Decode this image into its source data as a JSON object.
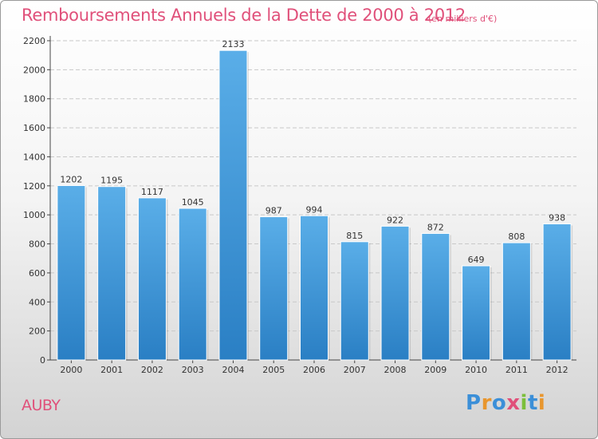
{
  "title": "Remboursements Annuels de la Dette de 2000 à 2012",
  "unit_note": "(en milliers d'€)",
  "commune": "AUBY",
  "logo": {
    "text": "Proxiti",
    "letters": [
      {
        "ch": "P",
        "color": "#3b8fd8"
      },
      {
        "ch": "r",
        "color": "#e8962e"
      },
      {
        "ch": "o",
        "color": "#3b8fd8"
      },
      {
        "ch": "x",
        "color": "#e0507a"
      },
      {
        "ch": "i",
        "color": "#7cbf3b"
      },
      {
        "ch": "t",
        "color": "#3b8fd8"
      },
      {
        "ch": "i",
        "color": "#e8962e"
      }
    ]
  },
  "colors": {
    "accent": "#e0507a",
    "bar_light": "#5aaee8",
    "bar_dark": "#2a7fc4",
    "grid": "#c8c8c8"
  },
  "chart_data": {
    "type": "bar",
    "title": "Remboursements Annuels de la Dette de 2000 à 2012",
    "xlabel": "",
    "ylabel": "",
    "categories": [
      "2000",
      "2001",
      "2002",
      "2003",
      "2004",
      "2005",
      "2006",
      "2007",
      "2008",
      "2009",
      "2010",
      "2011",
      "2012"
    ],
    "values": [
      1202,
      1195,
      1117,
      1045,
      2133,
      987,
      994,
      815,
      922,
      872,
      649,
      808,
      938
    ],
    "ylim": [
      0,
      2200
    ],
    "yticks": [
      0,
      200,
      400,
      600,
      800,
      1000,
      1200,
      1400,
      1600,
      1800,
      2000,
      2200
    ],
    "grid": true,
    "data_labels": true
  }
}
